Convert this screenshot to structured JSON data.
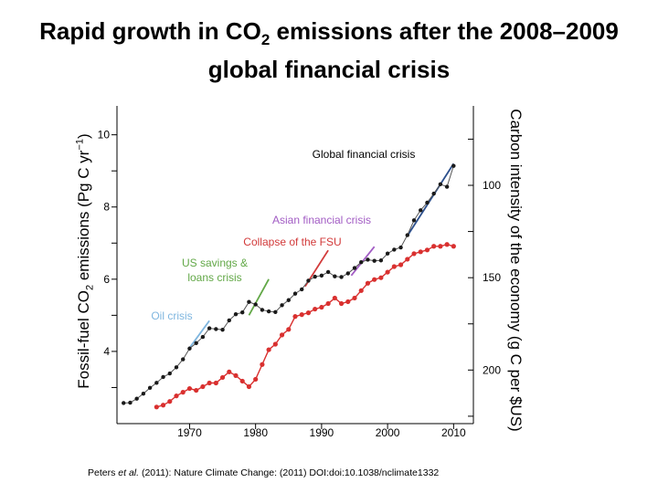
{
  "title": {
    "line1_pre": "Rapid growth in CO",
    "line1_sub": "2",
    "line1_post": " emissions after the 2008–2009",
    "line2": "global financial crisis"
  },
  "axes": {
    "y_left_label_pre": "Fossil-fuel CO",
    "y_left_label_sub": "2",
    "y_left_label_mid": " emissions (Pg C yr",
    "y_left_label_sup": "−1",
    "y_left_label_post": ")",
    "y_right_label": "Carbon intensity of the economy (g C per $US)"
  },
  "citation": {
    "pre": "Peters ",
    "italic": "et al.",
    "post": " (2011): Nature Climate Change: (2011) DOI:doi:10.1038/nclimate1332"
  },
  "chart_data": {
    "type": "line",
    "xlim": [
      1959,
      2013
    ],
    "ylim_left": [
      2.0,
      10.8
    ],
    "ylim_right": [
      229,
      57
    ],
    "right_axis_reversed": true,
    "grid": false,
    "x_ticks": [
      1970,
      1980,
      1990,
      2000,
      2010
    ],
    "y_left_ticks": [
      4,
      6,
      8,
      10
    ],
    "y_right_ticks": [
      100,
      150,
      200
    ],
    "x_tick_labels": [
      "1970",
      "1980",
      "1990",
      "2000",
      "2010"
    ],
    "y_left_tick_labels": [
      "4",
      "6",
      "8",
      "10"
    ],
    "y_right_tick_labels": [
      "100",
      "150",
      "200"
    ],
    "colors": {
      "emissions": "#1a1a1a",
      "emissions_fit": "#2c4f8c",
      "intensity": "#d9302f",
      "oil_crisis": "#7fb6df",
      "us_savings": "#62a847",
      "fsu": "#d23a3a",
      "asian": "#a25cc4",
      "gfc": "#2c4f8c"
    },
    "series": [
      {
        "axis": "left",
        "x": [
          1960,
          1961,
          1962,
          1963,
          1964,
          1965,
          1966,
          1967,
          1968,
          1969,
          1970,
          1971,
          1972,
          1973,
          1974,
          1975,
          1976,
          1977,
          1978,
          1979,
          1980,
          1981,
          1982,
          1983,
          1984,
          1985,
          1986,
          1987,
          1988,
          1989,
          1990,
          1991,
          1992,
          1993,
          1994,
          1995,
          1996,
          1997,
          1998,
          1999,
          2000,
          2001,
          2002,
          2003,
          2004,
          2005,
          2006,
          2007,
          2008,
          2009,
          2010
        ],
        "values": [
          2.57,
          2.58,
          2.69,
          2.83,
          2.99,
          3.13,
          3.29,
          3.39,
          3.56,
          3.78,
          4.08,
          4.23,
          4.4,
          4.64,
          4.62,
          4.6,
          4.86,
          5.03,
          5.08,
          5.37,
          5.3,
          5.15,
          5.11,
          5.09,
          5.28,
          5.42,
          5.6,
          5.72,
          5.96,
          6.07,
          6.1,
          6.2,
          6.08,
          6.06,
          6.16,
          6.31,
          6.47,
          6.54,
          6.51,
          6.52,
          6.71,
          6.82,
          6.88,
          7.22,
          7.63,
          7.91,
          8.12,
          8.37,
          8.63,
          8.56,
          9.14
        ]
      },
      {
        "axis": "right",
        "x": [
          1965,
          1966,
          1967,
          1968,
          1969,
          1970,
          1971,
          1972,
          1973,
          1974,
          1975,
          1976,
          1977,
          1978,
          1979,
          1980,
          1981,
          1982,
          1983,
          1984,
          1985,
          1986,
          1987,
          1988,
          1989,
          1990,
          1991,
          1992,
          1993,
          1994,
          1995,
          1996,
          1997,
          1998,
          1999,
          2000,
          2001,
          2002,
          2003,
          2004,
          2005,
          2006,
          2007,
          2008,
          2009,
          2010
        ],
        "values": [
          220,
          219,
          217,
          214,
          212,
          210,
          211,
          209,
          207,
          207,
          204,
          201,
          203,
          206,
          209,
          205,
          197,
          189,
          186,
          181,
          178,
          171,
          170,
          169,
          167,
          166,
          164,
          161,
          164,
          163,
          161,
          157,
          153,
          151,
          150,
          147,
          144,
          143,
          140,
          137,
          136,
          135,
          133,
          133,
          132,
          133
        ]
      }
    ],
    "annotations": [
      {
        "label": "Oil crisis",
        "from": [
          1970,
          4.1
        ],
        "to": [
          1973,
          4.85
        ]
      },
      {
        "label": "US savings & loans crisis",
        "from": [
          1979,
          5.0
        ],
        "to": [
          1982,
          6.0
        ]
      },
      {
        "label": "Collapse of the FSU",
        "from": [
          1987.5,
          5.8
        ],
        "to": [
          1991,
          6.8
        ]
      },
      {
        "label": "Asian financial crisis",
        "from": [
          1994.5,
          6.1
        ],
        "to": [
          1998,
          6.9
        ]
      },
      {
        "label": "Global financial crisis",
        "from": [
          2003,
          7.2
        ],
        "to": [
          2010,
          9.2
        ]
      }
    ]
  }
}
